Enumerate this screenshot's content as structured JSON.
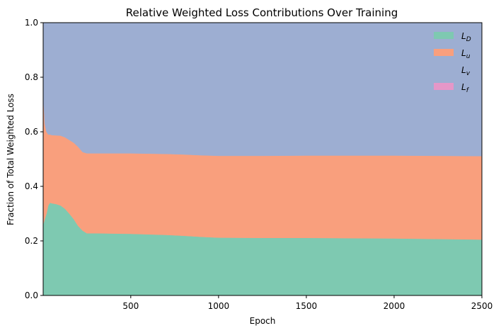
{
  "chart_data": {
    "type": "area",
    "title": "Relative Weighted Loss Contributions Over Training",
    "xlabel": "Epoch",
    "ylabel": "Fraction of Total Weighted Loss",
    "xlim": [
      1,
      2500
    ],
    "ylim": [
      0,
      1.0
    ],
    "xticks": [
      500,
      1000,
      1500,
      2000,
      2500
    ],
    "xtick_labels": [
      "500",
      "1000",
      "1500",
      "2000",
      "2500"
    ],
    "yticks": [
      0.0,
      0.2,
      0.4,
      0.6,
      0.8,
      1.0
    ],
    "ytick_labels": [
      "0.0",
      "0.2",
      "0.4",
      "0.6",
      "0.8",
      "1.0"
    ],
    "stacked": true,
    "legend_position": "top-right",
    "x": [
      1,
      10,
      20,
      30,
      40,
      50,
      75,
      100,
      125,
      150,
      175,
      200,
      225,
      250,
      275,
      300,
      400,
      500,
      600,
      700,
      800,
      900,
      1000,
      1250,
      1500,
      1750,
      2000,
      2250,
      2500
    ],
    "series": [
      {
        "name": "L_D",
        "base": "L",
        "sub": "D",
        "color": "#7ec9b1",
        "values": [
          0.26,
          0.28,
          0.3,
          0.33,
          0.34,
          0.338,
          0.335,
          0.33,
          0.318,
          0.3,
          0.28,
          0.255,
          0.238,
          0.228,
          0.228,
          0.228,
          0.227,
          0.226,
          0.224,
          0.222,
          0.219,
          0.215,
          0.212,
          0.211,
          0.211,
          0.21,
          0.209,
          0.207,
          0.205
        ]
      },
      {
        "name": "L_u",
        "base": "L",
        "sub": "u",
        "color": "#f99f7d",
        "values": [
          0.48,
          0.35,
          0.3,
          0.26,
          0.25,
          0.25,
          0.252,
          0.256,
          0.262,
          0.27,
          0.28,
          0.29,
          0.288,
          0.293,
          0.293,
          0.293,
          0.294,
          0.295,
          0.296,
          0.297,
          0.298,
          0.299,
          0.3,
          0.301,
          0.302,
          0.303,
          0.304,
          0.305,
          0.306
        ]
      },
      {
        "name": "L_v",
        "base": "L",
        "sub": "v",
        "color": "#9daed2",
        "values": [
          0.26,
          0.37,
          0.4,
          0.41,
          0.41,
          0.412,
          0.413,
          0.414,
          0.42,
          0.43,
          0.44,
          0.455,
          0.474,
          0.479,
          0.479,
          0.479,
          0.479,
          0.479,
          0.48,
          0.481,
          0.483,
          0.486,
          0.488,
          0.488,
          0.487,
          0.487,
          0.487,
          0.488,
          0.489
        ]
      },
      {
        "name": "L_f",
        "base": "L",
        "sub": "f",
        "color": "#e597c8",
        "values": [
          0.0,
          0.0,
          0.0,
          0.0,
          0.0,
          0.0,
          0.0,
          0.0,
          0.0,
          0.0,
          0.0,
          0.0,
          0.0,
          0.0,
          0.0,
          0.0,
          0.0,
          0.0,
          0.0,
          0.0,
          0.0,
          0.0,
          0.0,
          0.0,
          0.0,
          0.0,
          0.0,
          0.0,
          0.0
        ]
      }
    ]
  }
}
